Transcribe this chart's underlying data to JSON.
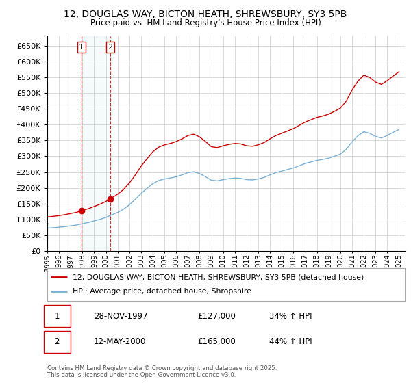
{
  "title_line1": "12, DOUGLAS WAY, BICTON HEATH, SHREWSBURY, SY3 5PB",
  "title_line2": "Price paid vs. HM Land Registry's House Price Index (HPI)",
  "ylim": [
    0,
    680000
  ],
  "xlim_start": 1995.0,
  "xlim_end": 2025.5,
  "red_color": "#cc0000",
  "blue_color": "#7ab0d4",
  "background_color": "#ffffff",
  "grid_color": "#cccccc",
  "transaction1_date": 1997.91,
  "transaction1_price": 127000,
  "transaction1_label": "1",
  "transaction2_date": 2000.37,
  "transaction2_price": 165000,
  "transaction2_label": "2",
  "legend_label_red": "12, DOUGLAS WAY, BICTON HEATH, SHREWSBURY, SY3 5PB (detached house)",
  "legend_label_blue": "HPI: Average price, detached house, Shropshire",
  "footer_text": "Contains HM Land Registry data © Crown copyright and database right 2025.\nThis data is licensed under the Open Government Licence v3.0.",
  "table_row1": [
    "1",
    "28-NOV-1997",
    "£127,000",
    "34% ↑ HPI"
  ],
  "table_row2": [
    "2",
    "12-MAY-2000",
    "£165,000",
    "44% ↑ HPI"
  ],
  "yticks": [
    0,
    50000,
    100000,
    150000,
    200000,
    250000,
    300000,
    350000,
    400000,
    450000,
    500000,
    550000,
    600000,
    650000
  ],
  "years_blue": [
    1995.0,
    1995.5,
    1996.0,
    1996.5,
    1997.0,
    1997.5,
    1998.0,
    1998.5,
    1999.0,
    1999.5,
    2000.0,
    2000.5,
    2001.0,
    2001.5,
    2002.0,
    2002.5,
    2003.0,
    2003.5,
    2004.0,
    2004.5,
    2005.0,
    2005.5,
    2006.0,
    2006.5,
    2007.0,
    2007.5,
    2008.0,
    2008.5,
    2009.0,
    2009.5,
    2010.0,
    2010.5,
    2011.0,
    2011.5,
    2012.0,
    2012.5,
    2013.0,
    2013.5,
    2014.0,
    2014.5,
    2015.0,
    2015.5,
    2016.0,
    2016.5,
    2017.0,
    2017.5,
    2018.0,
    2018.5,
    2019.0,
    2019.5,
    2020.0,
    2020.5,
    2021.0,
    2021.5,
    2022.0,
    2022.5,
    2023.0,
    2023.5,
    2024.0,
    2024.5,
    2025.0
  ],
  "blue_values": [
    72000,
    73500,
    75000,
    77000,
    79500,
    82000,
    86000,
    90000,
    95000,
    100000,
    106000,
    114000,
    122000,
    132000,
    146000,
    163000,
    182000,
    198000,
    213000,
    223000,
    228000,
    231000,
    235000,
    241000,
    248000,
    251000,
    245000,
    235000,
    224000,
    222000,
    226000,
    229000,
    231000,
    230000,
    226000,
    225000,
    228000,
    233000,
    241000,
    248000,
    253000,
    258000,
    263000,
    270000,
    277000,
    282000,
    287000,
    290000,
    294000,
    300000,
    307000,
    322000,
    346000,
    365000,
    378000,
    373000,
    363000,
    358000,
    366000,
    376000,
    385000
  ]
}
